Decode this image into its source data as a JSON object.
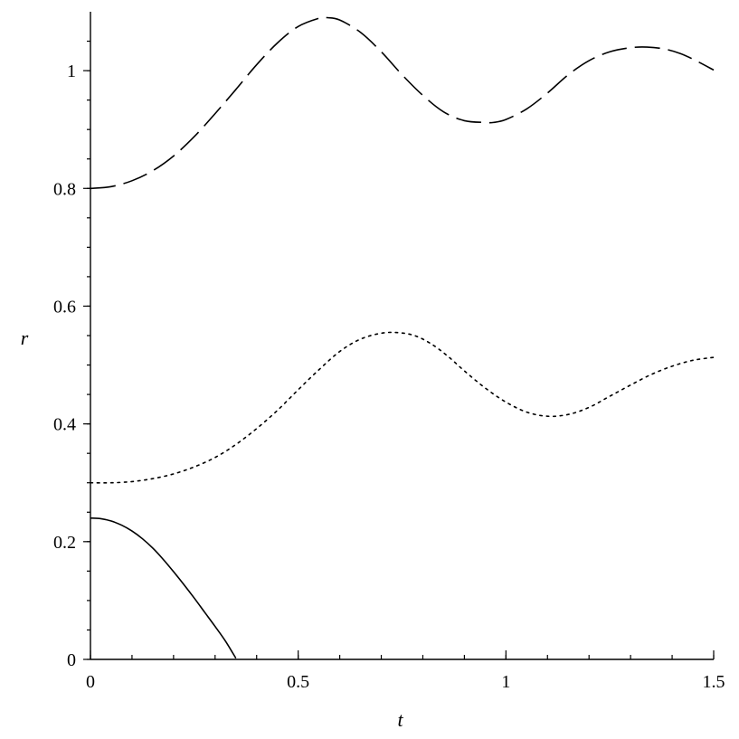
{
  "chart_data": {
    "type": "line",
    "xlabel": "t",
    "ylabel": "r",
    "xlim": [
      0,
      1.5
    ],
    "ylim": [
      0,
      1.1
    ],
    "x_ticks": [
      {
        "value": 0,
        "label": "0"
      },
      {
        "value": 0.5,
        "label": "0.5"
      },
      {
        "value": 1,
        "label": "1"
      },
      {
        "value": 1.5,
        "label": "1.5"
      }
    ],
    "x_minor_step": 0.1,
    "y_ticks": [
      {
        "value": 0,
        "label": "0"
      },
      {
        "value": 0.2,
        "label": "0.2"
      },
      {
        "value": 0.4,
        "label": "0.4"
      },
      {
        "value": 0.6,
        "label": "0.6"
      },
      {
        "value": 0.8,
        "label": "0.8"
      },
      {
        "value": 1,
        "label": "1"
      }
    ],
    "y_minor_step": 0.05,
    "grid": false,
    "legend": "none",
    "series": [
      {
        "style": "dashed",
        "x": [
          0,
          0.05,
          0.1,
          0.15,
          0.2,
          0.25,
          0.3,
          0.35,
          0.4,
          0.45,
          0.5,
          0.55,
          0.57,
          0.6,
          0.65,
          0.7,
          0.75,
          0.8,
          0.85,
          0.9,
          0.95,
          0.97,
          1.0,
          1.05,
          1.1,
          1.15,
          1.2,
          1.25,
          1.3,
          1.34,
          1.38,
          1.42,
          1.46,
          1.5
        ],
        "y": [
          0.8,
          0.803,
          0.813,
          0.83,
          0.855,
          0.888,
          0.927,
          0.968,
          1.01,
          1.047,
          1.075,
          1.089,
          1.09,
          1.086,
          1.065,
          1.032,
          0.993,
          0.958,
          0.93,
          0.915,
          0.912,
          0.912,
          0.917,
          0.935,
          0.962,
          0.993,
          1.017,
          1.032,
          1.039,
          1.04,
          1.037,
          1.029,
          1.016,
          1.001
        ]
      },
      {
        "style": "dotted",
        "x": [
          0,
          0.05,
          0.1,
          0.15,
          0.2,
          0.25,
          0.3,
          0.35,
          0.4,
          0.45,
          0.5,
          0.55,
          0.6,
          0.65,
          0.7,
          0.74,
          0.78,
          0.82,
          0.86,
          0.9,
          0.95,
          1.0,
          1.05,
          1.1,
          1.15,
          1.2,
          1.25,
          1.3,
          1.35,
          1.4,
          1.45,
          1.5
        ],
        "y": [
          0.3,
          0.3,
          0.302,
          0.307,
          0.315,
          0.327,
          0.343,
          0.365,
          0.392,
          0.423,
          0.458,
          0.492,
          0.523,
          0.544,
          0.554,
          0.555,
          0.55,
          0.536,
          0.515,
          0.49,
          0.461,
          0.437,
          0.42,
          0.413,
          0.416,
          0.428,
          0.447,
          0.466,
          0.484,
          0.498,
          0.508,
          0.513
        ]
      },
      {
        "style": "solid",
        "x": [
          0,
          0.025,
          0.05,
          0.075,
          0.1,
          0.125,
          0.15,
          0.175,
          0.2,
          0.225,
          0.25,
          0.275,
          0.3,
          0.325,
          0.35
        ],
        "y": [
          0.24,
          0.239,
          0.235,
          0.228,
          0.218,
          0.205,
          0.189,
          0.17,
          0.149,
          0.127,
          0.104,
          0.08,
          0.056,
          0.031,
          0.002
        ]
      }
    ]
  }
}
